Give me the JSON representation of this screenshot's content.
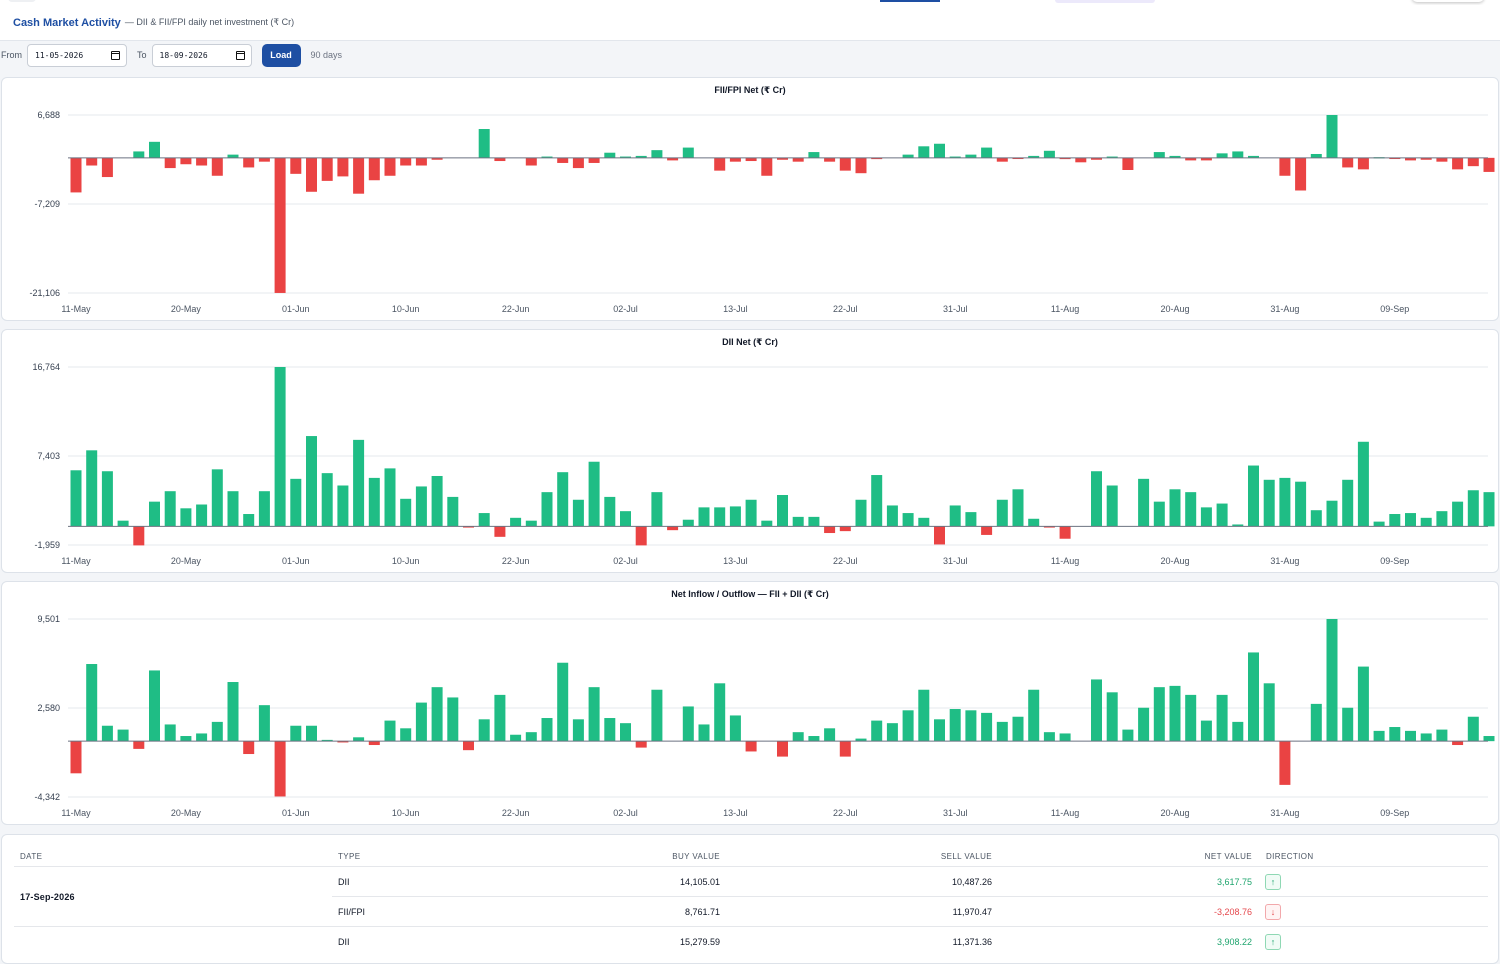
{
  "header": {
    "title": "Cash Market Activity",
    "subtitle": "— DII & FII/FPI daily net investment (₹ Cr)"
  },
  "filters": {
    "from_label": "From",
    "from_value": "11-05-2026",
    "to_label": "To",
    "to_value": "18-09-2026",
    "load_label": "Load",
    "days_label": "90 days"
  },
  "colors": {
    "positive": "#1fbd85",
    "negative": "#ea4343",
    "accent": "#1e4fa3"
  },
  "x_ticks": [
    "11-May",
    "20-May",
    "01-Jun",
    "10-Jun",
    "22-Jun",
    "02-Jul",
    "13-Jul",
    "22-Jul",
    "31-Jul",
    "11-Aug",
    "20-Aug",
    "31-Aug",
    "09-Sep"
  ],
  "chart_data": [
    {
      "type": "bar",
      "title": "FII/FPI Net (₹ Cr)",
      "y_ticks": [
        "6,688",
        "-7,209",
        "-21,106"
      ],
      "ylim": [
        -21106,
        6688
      ],
      "values": [
        -5400,
        -1200,
        -3000,
        0,
        1000,
        2500,
        -1600,
        -1000,
        -1200,
        -2800,
        500,
        -1500,
        -600,
        -21100,
        -2500,
        -5300,
        -3600,
        -2900,
        -5600,
        -3500,
        -2800,
        -1200,
        -1200,
        -300,
        0,
        0,
        4500,
        -500,
        0,
        -1200,
        200,
        -800,
        -1600,
        -800,
        800,
        200,
        300,
        1200,
        -400,
        1600,
        0,
        -2000,
        -600,
        -500,
        -2800,
        -300,
        -600,
        900,
        -600,
        -2000,
        -2400,
        -200,
        0,
        500,
        1800,
        2200,
        200,
        500,
        1600,
        -600,
        -100,
        300,
        1100,
        -200,
        -700,
        -300,
        200,
        -1900,
        0,
        900,
        300,
        -400,
        -400,
        700,
        1000,
        300,
        0,
        -2800,
        -5100,
        600,
        6688,
        -1500,
        -1800,
        100,
        -100,
        -400,
        -300,
        -600,
        -1800,
        -1300,
        -2200
      ]
    },
    {
      "type": "bar",
      "title": "DII Net (₹ Cr)",
      "y_ticks": [
        "16,764",
        "7,403",
        "-1,959"
      ],
      "ylim": [
        -1959,
        16764
      ],
      "values": [
        5900,
        8000,
        5800,
        600,
        -2000,
        2600,
        3700,
        1900,
        2300,
        6000,
        3700,
        1300,
        3700,
        16764,
        5000,
        9500,
        5600,
        4300,
        9100,
        5100,
        6100,
        2900,
        4200,
        5300,
        3100,
        -100,
        1400,
        -1100,
        900,
        600,
        3600,
        5700,
        2800,
        6800,
        3100,
        1600,
        -2000,
        3600,
        -400,
        700,
        2000,
        2000,
        2100,
        2800,
        600,
        3300,
        1000,
        1000,
        -700,
        -500,
        2800,
        5400,
        2200,
        1400,
        900,
        -1900,
        2200,
        1500,
        -900,
        2800,
        3900,
        800,
        -100,
        -1300,
        0,
        5800,
        4300,
        0,
        5000,
        2600,
        3900,
        3600,
        2000,
        2400,
        200,
        6400,
        4900,
        5100,
        4700,
        1700,
        2700,
        4900,
        8900,
        500,
        1300,
        1400,
        900,
        1600,
        2600,
        3800,
        3600
      ]
    },
    {
      "type": "bar",
      "title": "Net Inflow / Outflow — FII + DII (₹ Cr)",
      "y_ticks": [
        "9,501",
        "2,580",
        "-4,342"
      ],
      "ylim": [
        -4342,
        9501
      ],
      "values": [
        -2500,
        6000,
        1200,
        900,
        -600,
        5500,
        1300,
        400,
        600,
        1500,
        4600,
        -1000,
        2800,
        -4300,
        1200,
        1200,
        100,
        -100,
        300,
        -300,
        1600,
        1000,
        3000,
        4200,
        3400,
        -700,
        1700,
        3600,
        500,
        700,
        1800,
        6100,
        1700,
        4200,
        1800,
        1400,
        -500,
        4000,
        0,
        2700,
        1300,
        4500,
        2000,
        -800,
        0,
        -1200,
        700,
        400,
        1000,
        -1200,
        200,
        1600,
        1400,
        2400,
        4000,
        1700,
        2500,
        2400,
        2200,
        1500,
        1900,
        4000,
        700,
        600,
        0,
        4800,
        3800,
        900,
        2600,
        4200,
        4300,
        3600,
        1600,
        3600,
        1500,
        6900,
        4500,
        -3400,
        0,
        2900,
        9501,
        2600,
        5800,
        800,
        1100,
        800,
        600,
        900,
        -300,
        1900,
        400
      ]
    }
  ],
  "table": {
    "headers": {
      "date": "DATE",
      "type": "TYPE",
      "buy": "BUY VALUE",
      "sell": "SELL VALUE",
      "net": "NET VALUE",
      "direction": "DIRECTION"
    },
    "date": "17-Sep-2026",
    "rows": [
      {
        "type": "DII",
        "buy": "14,105.01",
        "sell": "10,487.26",
        "net": "3,617.75",
        "direction": "up"
      },
      {
        "type": "FII/FPI",
        "buy": "8,761.71",
        "sell": "11,970.47",
        "net": "-3,208.76",
        "direction": "down"
      },
      {
        "type": "DII",
        "buy": "15,279.59",
        "sell": "11,371.36",
        "net": "3,908.22",
        "direction": "up"
      }
    ]
  }
}
